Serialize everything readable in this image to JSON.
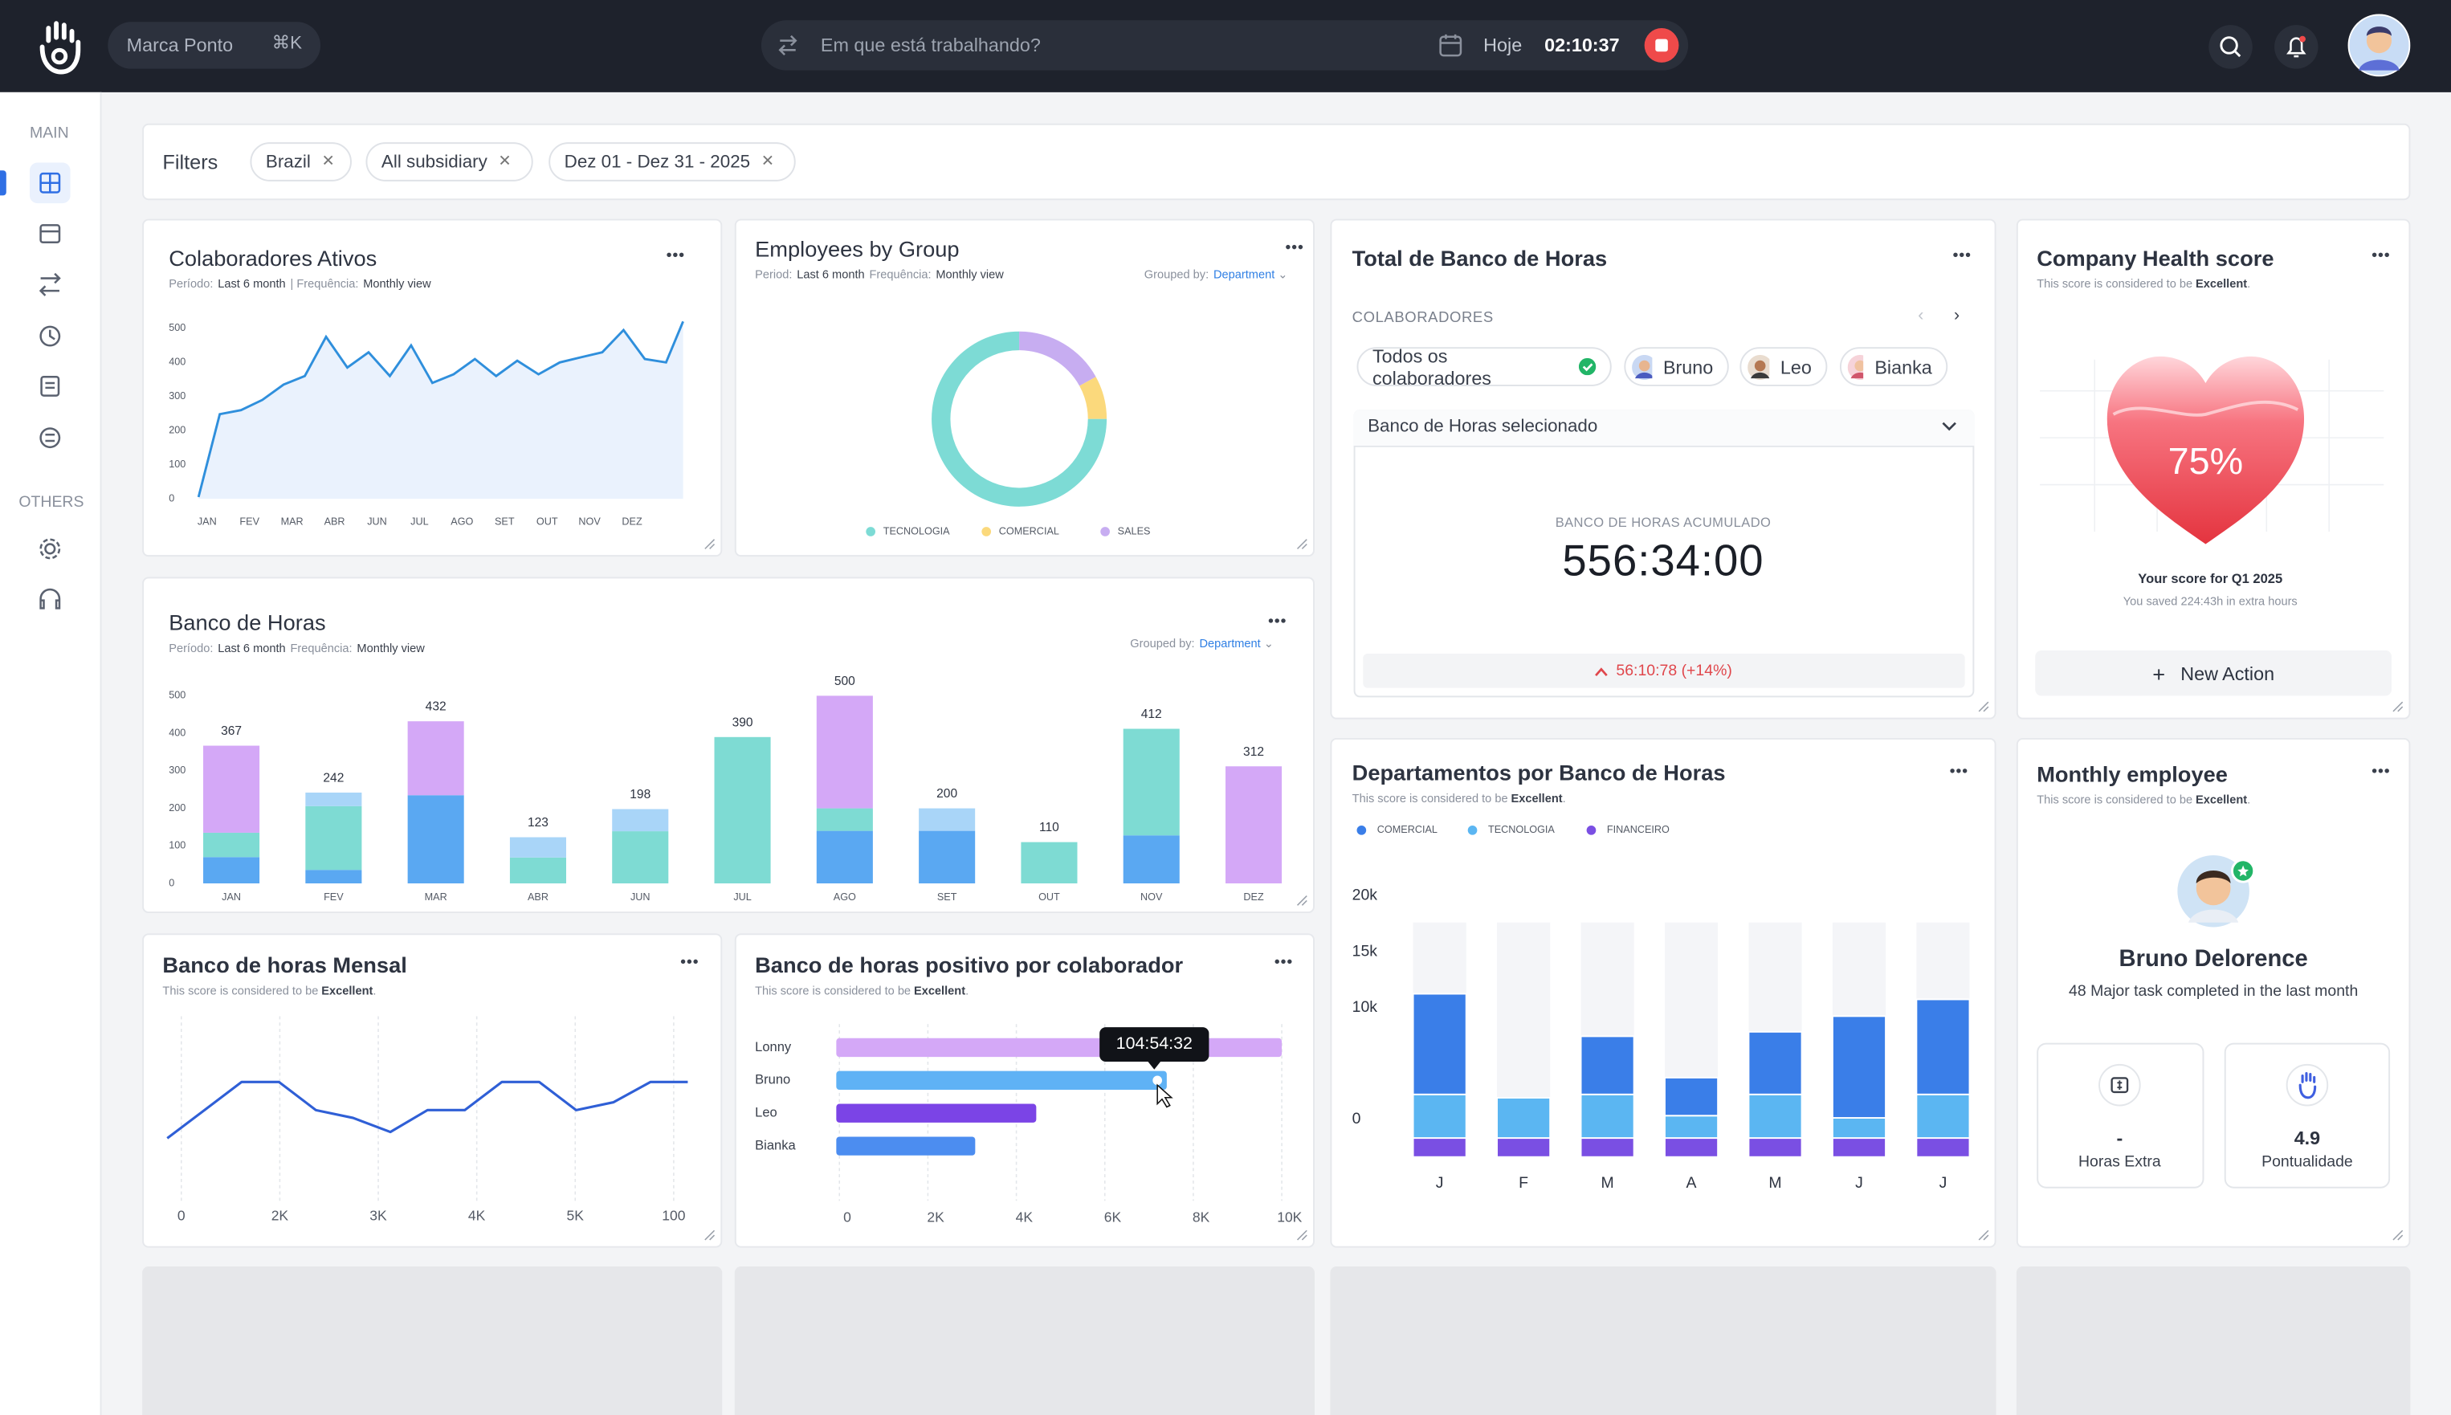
{
  "header": {
    "brand": "Marca Ponto",
    "shortcut": "⌘K",
    "search": "Em que está trabalhando?",
    "date": "Hoje",
    "timer": "02:10:37"
  },
  "sidebar": {
    "sections": [
      "MAIN",
      "OTHERS"
    ]
  },
  "filters": {
    "title": "Filters",
    "chips": [
      "Brazil",
      "All subsidiary",
      "Dez 01 - Dez 31 - 2025"
    ]
  },
  "colaboradores_ativos": {
    "type": "line",
    "title": "Colaboradores Ativos",
    "period_label": "Período:",
    "period": "Last 6 month",
    "frequency_label": "| Frequência:",
    "frequency": "Monthly view",
    "color": "#2f8fdc",
    "area_color": "#eaf2fd",
    "x": [
      -0.2,
      0.3,
      0.8,
      1.3,
      1.8,
      2.3,
      2.8,
      3.3,
      3.8,
      4.3,
      4.8,
      5.3,
      5.8,
      6.3,
      6.8,
      7.3,
      7.8,
      8.3,
      8.8,
      9.3,
      9.8,
      10.3,
      10.8,
      11.2
    ],
    "values": [
      5,
      248,
      260,
      290,
      335,
      360,
      475,
      385,
      430,
      360,
      450,
      340,
      365,
      410,
      360,
      405,
      365,
      400,
      415,
      430,
      495,
      410,
      400,
      520
    ],
    "xlim": [
      -0.2,
      11.2
    ],
    "xticks": [
      {
        "value": 0,
        "label": "JAN"
      },
      {
        "value": 1,
        "label": "FEV"
      },
      {
        "value": 2,
        "label": "MAR"
      },
      {
        "value": 3,
        "label": "ABR"
      },
      {
        "value": 4,
        "label": "JUN"
      },
      {
        "value": 5,
        "label": "JUL"
      },
      {
        "value": 6,
        "label": "AGO"
      },
      {
        "value": 7,
        "label": "SET"
      },
      {
        "value": 8,
        "label": "OUT"
      },
      {
        "value": 9,
        "label": "NOV"
      },
      {
        "value": 10,
        "label": "DEZ"
      }
    ],
    "ylim": [
      0,
      500
    ],
    "yticks": [
      0,
      100,
      200,
      300,
      400,
      500
    ]
  },
  "employees_by_group": {
    "type": "pie",
    "donut": true,
    "title": "Employees by Group",
    "period_label": "Period:",
    "period": "Last 6 month",
    "frequency_label": "Frequência:",
    "frequency": "Monthly view",
    "grouped_label": "Grouped by:",
    "grouped": "Department",
    "categories": [
      "TECNOLOGIA",
      "COMERCIAL",
      "SALES"
    ],
    "values": [
      75,
      8,
      17
    ],
    "colors": [
      "#7ddbd5",
      "#fbd97c",
      "#c7adf1"
    ]
  },
  "banco_de_horas": {
    "type": "bar",
    "stacked": true,
    "title": "Banco de Horas",
    "period_label": "Período:",
    "period": "Last 6 month",
    "frequency_label": "Frequência:",
    "frequency": "Monthly view",
    "grouped_label": "Grouped by:",
    "grouped": "Department",
    "categories": [
      "JAN",
      "FEV",
      "MAR",
      "ABR",
      "JUN",
      "JUL",
      "AGO",
      "SET",
      "OUT",
      "NOV",
      "DEZ"
    ],
    "series": [
      {
        "color": "#5aa8f2",
        "values": [
          70,
          36,
          235,
          0,
          0,
          0,
          140,
          140,
          0,
          128,
          0
        ]
      },
      {
        "color": "#7edbd3",
        "values": [
          65,
          170,
          0,
          69,
          139,
          390,
          60,
          0,
          110,
          284,
          0
        ]
      },
      {
        "color": "#a9d5f8",
        "values": [
          0,
          36,
          0,
          54,
          59,
          0,
          0,
          60,
          0,
          0,
          0
        ]
      },
      {
        "color": "#d4a8f7",
        "values": [
          232,
          0,
          197,
          0,
          0,
          0,
          300,
          0,
          0,
          0,
          312
        ]
      }
    ],
    "totals": [
      367,
      242,
      432,
      123,
      198,
      390,
      500,
      200,
      110,
      412,
      312
    ],
    "ylim": [
      0,
      500
    ],
    "yticks": [
      0,
      100,
      200,
      300,
      400,
      500
    ]
  },
  "total_banco": {
    "title": "Total de Banco de Horas",
    "section": "COLABORADORES",
    "people": [
      "Todos os colaboradores",
      "Bruno",
      "Leo",
      "Bianka"
    ],
    "select": "Banco de Horas selecionado",
    "metric_label": "BANCO DE HORAS ACUMULADO",
    "metric": "556:34:00",
    "change": "56:10:78 (+14%)"
  },
  "health": {
    "title": "Company Health score",
    "subtitle": "This score is considered to be",
    "rating": "Excellent",
    "end": ".",
    "score": "75%",
    "caption": "Your score for Q1 2025",
    "note": "You saved 224:43h in extra hours",
    "action": "New Action"
  },
  "departamentos": {
    "type": "bar",
    "stacked": true,
    "title": "Departamentos por Banco de Horas",
    "subtitle": "This score is considered to be",
    "rating": "Excellent",
    "end": ".",
    "categories": [
      "J",
      "F",
      "M",
      "A",
      "M",
      "J",
      "J"
    ],
    "series": [
      {
        "name": "COMERCIAL",
        "color": "#3a7ee8",
        "values": [
          9000,
          0,
          5200,
          3400,
          5600,
          9100,
          8500
        ]
      },
      {
        "name": "TECNOLOGIA",
        "color": "#5bb6f2",
        "values": [
          3900,
          3600,
          3900,
          2000,
          3900,
          1800,
          3900
        ]
      },
      {
        "name": "FINANCEIRO",
        "color": "#7a4fe3",
        "values": [
          1700,
          1700,
          1700,
          1700,
          1700,
          1700,
          1700
        ]
      }
    ],
    "ylim": [
      0,
      20000
    ],
    "yticks": [
      0,
      {
        "value": 10000,
        "label": "10k"
      },
      {
        "value": 15000,
        "label": "15k"
      },
      {
        "value": 20000,
        "label": "20k"
      }
    ]
  },
  "monthly_employee": {
    "title": "Monthly employee",
    "subtitle": "This score is considered to be",
    "rating": "Excellent",
    "end": ".",
    "name": "Bruno Delorence",
    "description": "48 Major task completed in the last month",
    "stats": [
      {
        "value": "-",
        "label": "Horas Extra"
      },
      {
        "value": 4.9,
        "label": "Pontualidade"
      }
    ]
  },
  "banco_mensal": {
    "type": "line",
    "title": "Banco de horas Mensal",
    "subtitle": "This score is considered to be",
    "rating": "Excellent",
    "end": ".",
    "color": "#2f5fd6",
    "x_labels": [
      "0",
      "2K",
      "3K",
      "4K",
      "5K",
      "100"
    ],
    "values": [
      32,
      50,
      68,
      68,
      50,
      45,
      36,
      50,
      50,
      68,
      68,
      50,
      55,
      68,
      68
    ],
    "ylim": [
      0,
      100
    ]
  },
  "positivo": {
    "type": "bar",
    "horizontal": true,
    "title": "Banco de horas positivo por colaborador",
    "subtitle": "This score is considered to be",
    "rating": "Excellent",
    "end": ".",
    "categories": [
      "Lonny",
      "Bruno",
      "Leo",
      "Bianka"
    ],
    "values": [
      10000,
      7400,
      4450,
      3070
    ],
    "colors": [
      "#d4a8f7",
      "#5fb2f5",
      "#7b44e6",
      "#4c8df0"
    ],
    "xlim": [
      0,
      10000
    ],
    "xticks": [
      0,
      {
        "value": 2000,
        "label": "2K"
      },
      {
        "value": 4000,
        "label": "4K"
      },
      {
        "value": 6000,
        "label": "6K"
      },
      {
        "value": 8000,
        "label": "8K"
      },
      {
        "value": 10000,
        "label": "10K"
      }
    ],
    "tooltip": "104:54:32"
  }
}
